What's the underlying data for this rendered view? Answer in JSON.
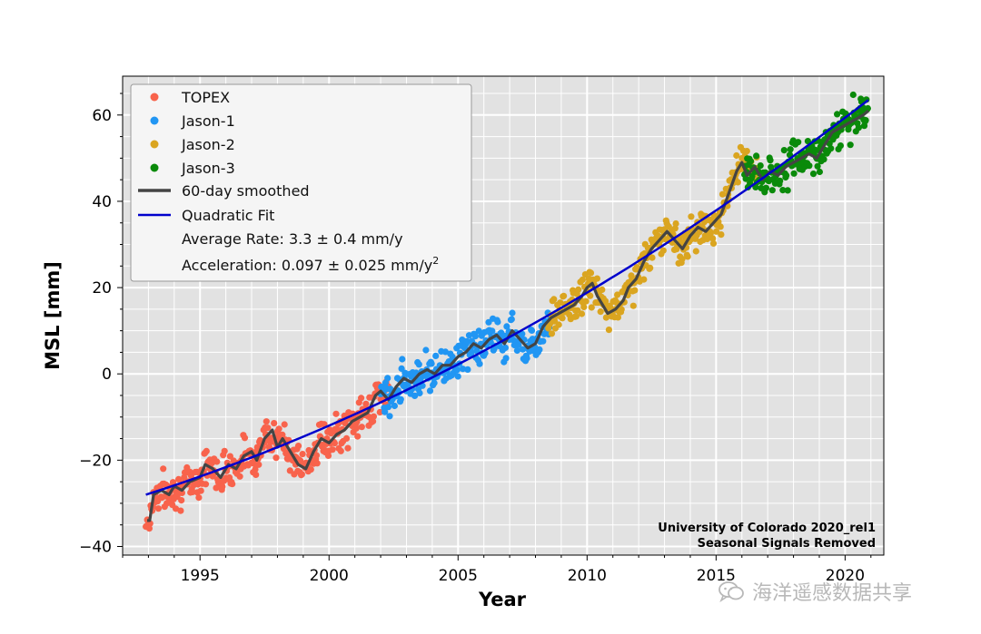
{
  "chart_data": {
    "type": "scatter",
    "xlabel": "Year",
    "ylabel": "MSL [mm]",
    "xlim": [
      1992,
      2021.5
    ],
    "ylim": [
      -42,
      69
    ],
    "xticks": [
      1995,
      2000,
      2005,
      2010,
      2015,
      2020
    ],
    "xtick_labels": [
      "1995",
      "2000",
      "2005",
      "2010",
      "2015",
      "2020"
    ],
    "yticks": [
      -40,
      -20,
      0,
      20,
      40,
      60
    ],
    "ytick_labels": [
      "−40",
      "−20",
      "0",
      "20",
      "40",
      "60"
    ],
    "grid": true,
    "legend_position": "top-left",
    "series": [
      {
        "name": "TOPEX",
        "color": "#f8634c",
        "marker": "dot",
        "x_range": [
          1992.9,
          2002.3
        ]
      },
      {
        "name": "Jason-1",
        "color": "#2196f3",
        "marker": "dot",
        "x_range": [
          2002.0,
          2008.6
        ]
      },
      {
        "name": "Jason-2",
        "color": "#daa520",
        "marker": "dot",
        "x_range": [
          2008.5,
          2016.6
        ]
      },
      {
        "name": "Jason-3",
        "color": "#0a8a0a",
        "marker": "dot",
        "x_range": [
          2016.1,
          2020.9
        ]
      }
    ],
    "smoothed": {
      "name": "60-day smoothed",
      "color": "#444444",
      "points": [
        [
          1992.95,
          -34
        ],
        [
          1993.05,
          -34
        ],
        [
          1993.2,
          -28
        ],
        [
          1993.5,
          -27
        ],
        [
          1993.8,
          -28
        ],
        [
          1994.0,
          -26
        ],
        [
          1994.3,
          -27
        ],
        [
          1994.6,
          -25
        ],
        [
          1995.0,
          -24
        ],
        [
          1995.2,
          -21
        ],
        [
          1995.5,
          -22
        ],
        [
          1995.8,
          -24
        ],
        [
          1996.1,
          -21
        ],
        [
          1996.4,
          -22
        ],
        [
          1996.7,
          -19
        ],
        [
          1997.0,
          -18
        ],
        [
          1997.2,
          -20
        ],
        [
          1997.5,
          -15
        ],
        [
          1997.8,
          -13
        ],
        [
          1998.0,
          -17
        ],
        [
          1998.2,
          -15
        ],
        [
          1998.5,
          -18
        ],
        [
          1998.8,
          -21
        ],
        [
          1999.1,
          -22
        ],
        [
          1999.4,
          -18
        ],
        [
          1999.7,
          -15
        ],
        [
          2000.0,
          -16
        ],
        [
          2000.3,
          -14
        ],
        [
          2000.6,
          -13
        ],
        [
          2000.9,
          -11
        ],
        [
          2001.2,
          -10
        ],
        [
          2001.5,
          -9
        ],
        [
          2001.8,
          -5
        ],
        [
          2002.0,
          -4
        ],
        [
          2002.3,
          -6
        ],
        [
          2002.6,
          -3
        ],
        [
          2002.9,
          -1
        ],
        [
          2003.2,
          -2
        ],
        [
          2003.5,
          0
        ],
        [
          2003.8,
          1
        ],
        [
          2004.1,
          0
        ],
        [
          2004.4,
          2
        ],
        [
          2004.7,
          2
        ],
        [
          2005.0,
          4
        ],
        [
          2005.3,
          5
        ],
        [
          2005.6,
          7
        ],
        [
          2005.9,
          6
        ],
        [
          2006.2,
          8
        ],
        [
          2006.5,
          9
        ],
        [
          2006.8,
          7
        ],
        [
          2007.1,
          10
        ],
        [
          2007.4,
          8
        ],
        [
          2007.7,
          6
        ],
        [
          2008.0,
          7
        ],
        [
          2008.3,
          11
        ],
        [
          2008.6,
          13
        ],
        [
          2008.9,
          14
        ],
        [
          2009.2,
          15
        ],
        [
          2009.5,
          16
        ],
        [
          2009.8,
          18
        ],
        [
          2010.0,
          20
        ],
        [
          2010.2,
          21
        ],
        [
          2010.4,
          18
        ],
        [
          2010.6,
          16
        ],
        [
          2010.8,
          14
        ],
        [
          2011.1,
          15
        ],
        [
          2011.4,
          17
        ],
        [
          2011.6,
          20
        ],
        [
          2011.9,
          22
        ],
        [
          2012.2,
          26
        ],
        [
          2012.5,
          29
        ],
        [
          2012.8,
          31
        ],
        [
          2013.1,
          33
        ],
        [
          2013.4,
          31
        ],
        [
          2013.7,
          29
        ],
        [
          2014.0,
          32
        ],
        [
          2014.3,
          34
        ],
        [
          2014.6,
          33
        ],
        [
          2014.9,
          35
        ],
        [
          2015.2,
          37
        ],
        [
          2015.5,
          42
        ],
        [
          2015.8,
          47
        ],
        [
          2016.0,
          49
        ],
        [
          2016.2,
          46
        ],
        [
          2016.5,
          48
        ],
        [
          2016.8,
          45
        ],
        [
          2017.1,
          47
        ],
        [
          2017.4,
          46
        ],
        [
          2017.7,
          48
        ],
        [
          2018.0,
          49
        ],
        [
          2018.3,
          50
        ],
        [
          2018.6,
          51
        ],
        [
          2018.9,
          50
        ],
        [
          2019.2,
          53
        ],
        [
          2019.5,
          56
        ],
        [
          2019.8,
          57
        ],
        [
          2020.1,
          58
        ],
        [
          2020.4,
          59
        ],
        [
          2020.7,
          60
        ],
        [
          2020.9,
          61
        ]
      ]
    },
    "quadratic_fit": {
      "name": "Quadratic Fit",
      "color": "#0000cc",
      "x_range": [
        1992.9,
        2020.9
      ],
      "start_value": -28,
      "end_value": 63.5,
      "average_rate": 3.3,
      "acceleration": 0.097
    },
    "legend": {
      "entries": [
        "TOPEX",
        "Jason-1",
        "Jason-2",
        "Jason-3",
        "60-day smoothed",
        "Quadratic Fit"
      ],
      "average_rate_text": "Average Rate: 3.3 ± 0.4 mm/y",
      "acceleration_text": "Acceleration: 0.097 ± 0.025 mm/y",
      "acceleration_superscript": "2"
    },
    "annotations": [
      "University of Colorado 2020_rel1",
      "Seasonal Signals Removed"
    ]
  },
  "watermark": {
    "text": "海洋遥感数据共享",
    "icon": "wechat-icon"
  }
}
